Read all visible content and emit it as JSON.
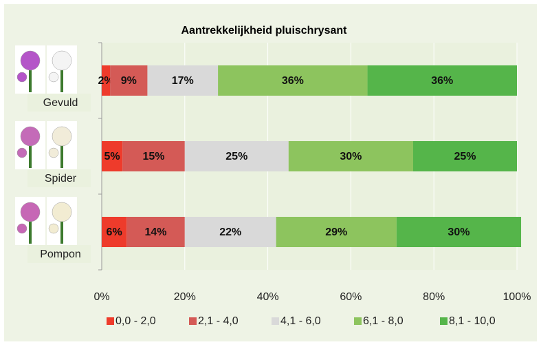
{
  "chart_data": {
    "type": "stacked-bar-horizontal",
    "title": "Aantrekkelijkheid pluischrysant",
    "categories": [
      "Gevuld",
      "Spider",
      "Pompon"
    ],
    "series": [
      {
        "name": "0,0 - 2,0",
        "color": "#ee3b2b",
        "values": [
          2,
          5,
          6
        ],
        "value_labels": [
          "2%",
          "5%",
          "6%"
        ]
      },
      {
        "name": "2,1 - 4,0",
        "color": "#d45a56",
        "values": [
          9,
          15,
          14
        ],
        "value_labels": [
          "9%",
          "15%",
          "14%"
        ]
      },
      {
        "name": "4,1 - 6,0",
        "color": "#d9d9d9",
        "values": [
          17,
          25,
          22
        ],
        "value_labels": [
          "17%",
          "25%",
          "22%"
        ]
      },
      {
        "name": "6,1 - 8,0",
        "color": "#8dc45e",
        "values": [
          36,
          30,
          29
        ],
        "value_labels": [
          "36%",
          "30%",
          "29%"
        ]
      },
      {
        "name": "8,1 - 10,0",
        "color": "#55b54a",
        "values": [
          36,
          25,
          30
        ],
        "value_labels": [
          "36%",
          "25%",
          "30%"
        ]
      }
    ],
    "xlim": [
      0,
      100
    ],
    "xticks": [
      {
        "value": 0,
        "label": "0%"
      },
      {
        "value": 20,
        "label": "20%"
      },
      {
        "value": 40,
        "label": "40%"
      },
      {
        "value": 60,
        "label": "60%"
      },
      {
        "value": 80,
        "label": "80%"
      },
      {
        "value": 100,
        "label": "100%"
      }
    ],
    "grid": true,
    "legend": "bottom"
  }
}
